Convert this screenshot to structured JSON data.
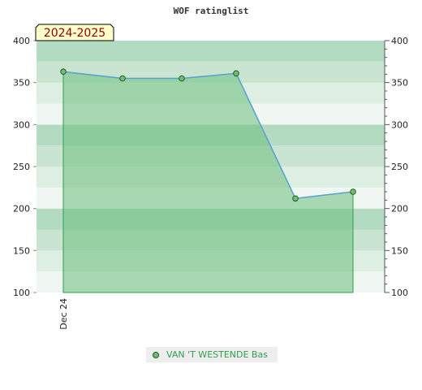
{
  "chart_data": {
    "type": "area",
    "title": "WOF ratinglist",
    "badge": "2024-2025",
    "x_tick_labels": [
      "Dec 24"
    ],
    "series": [
      {
        "name": "VAN 'T WESTENDE Bas",
        "values": [
          363,
          355,
          355,
          361,
          212,
          220
        ]
      }
    ],
    "ylim": [
      100,
      400
    ],
    "y_ticks": [
      100,
      150,
      200,
      250,
      300,
      350,
      400
    ],
    "y_ticks_right": [
      100,
      150,
      200,
      250,
      300,
      350,
      400
    ],
    "grid": "banded",
    "legend_position": "bottom",
    "colors": {
      "line": "#5a9fd4",
      "fill": "#6cbf7d",
      "marker": "#6fbf73",
      "marker_stroke": "#1e5c26",
      "band_colors": [
        "#f0f7f2",
        "#ddeee2",
        "#c9e4d0",
        "#b3dbc1"
      ],
      "badge_bg": "#ffffcc",
      "badge_border": "#000000"
    }
  }
}
